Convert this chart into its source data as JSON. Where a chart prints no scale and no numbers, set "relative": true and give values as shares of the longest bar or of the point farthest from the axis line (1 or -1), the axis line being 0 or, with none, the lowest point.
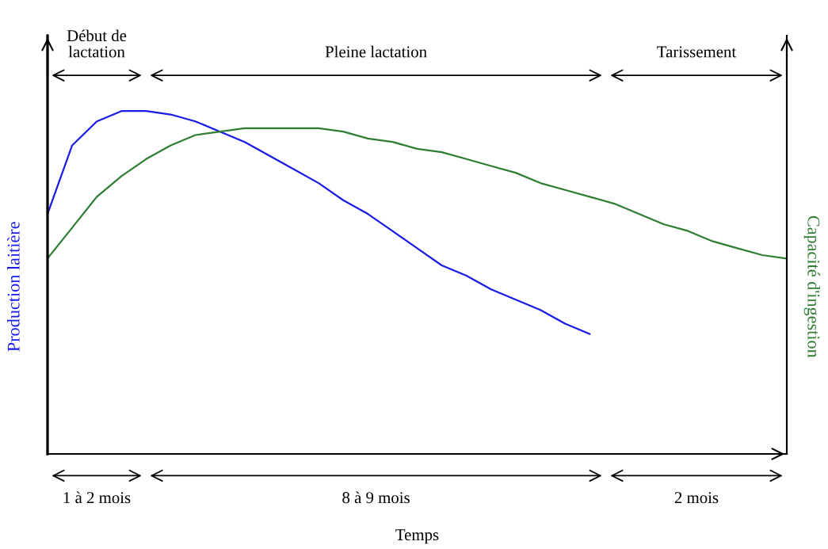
{
  "chart_data": {
    "type": "line",
    "relative": true,
    "xlabel": "Temps",
    "ylabel": "Production laitière",
    "y2label": "Capacité d'ingestion",
    "categories": [
      null,
      null,
      null,
      null,
      null,
      null,
      null,
      null,
      null,
      null,
      null,
      null,
      null,
      null,
      null,
      null,
      null,
      null,
      null,
      null,
      null,
      null,
      null,
      null,
      null,
      null,
      null,
      null,
      null,
      null,
      null
    ],
    "series": [
      {
        "color": "#1a1ae6",
        "values": [
          0.7,
          0.9,
          0.97,
          1.0,
          1.0,
          0.99,
          0.97,
          0.94,
          0.91,
          0.87,
          0.83,
          0.79,
          0.74,
          0.7,
          0.65,
          0.6,
          0.55,
          0.52,
          0.48,
          0.45,
          0.42,
          0.38,
          0.35,
          null,
          null,
          null,
          null,
          null,
          null,
          null,
          null
        ]
      },
      {
        "color": "#2e7d32",
        "values": [
          0.57,
          0.66,
          0.75,
          0.81,
          0.86,
          0.9,
          0.93,
          0.94,
          0.95,
          0.95,
          0.95,
          0.95,
          0.94,
          0.92,
          0.91,
          0.89,
          0.88,
          0.86,
          0.84,
          0.82,
          0.79,
          0.77,
          0.75,
          0.73,
          0.7,
          0.67,
          0.65,
          0.62,
          0.6,
          0.58,
          0.57
        ]
      }
    ],
    "annotations": [
      "Début de\nlactation",
      "Pleine lactation",
      "Tarissement",
      "1 à 2 mois",
      "8 à 9 mois",
      "2 mois"
    ],
    "grid": false,
    "legend": false,
    "tick_labels": false,
    "marker": "none",
    "line_style": "solid"
  }
}
